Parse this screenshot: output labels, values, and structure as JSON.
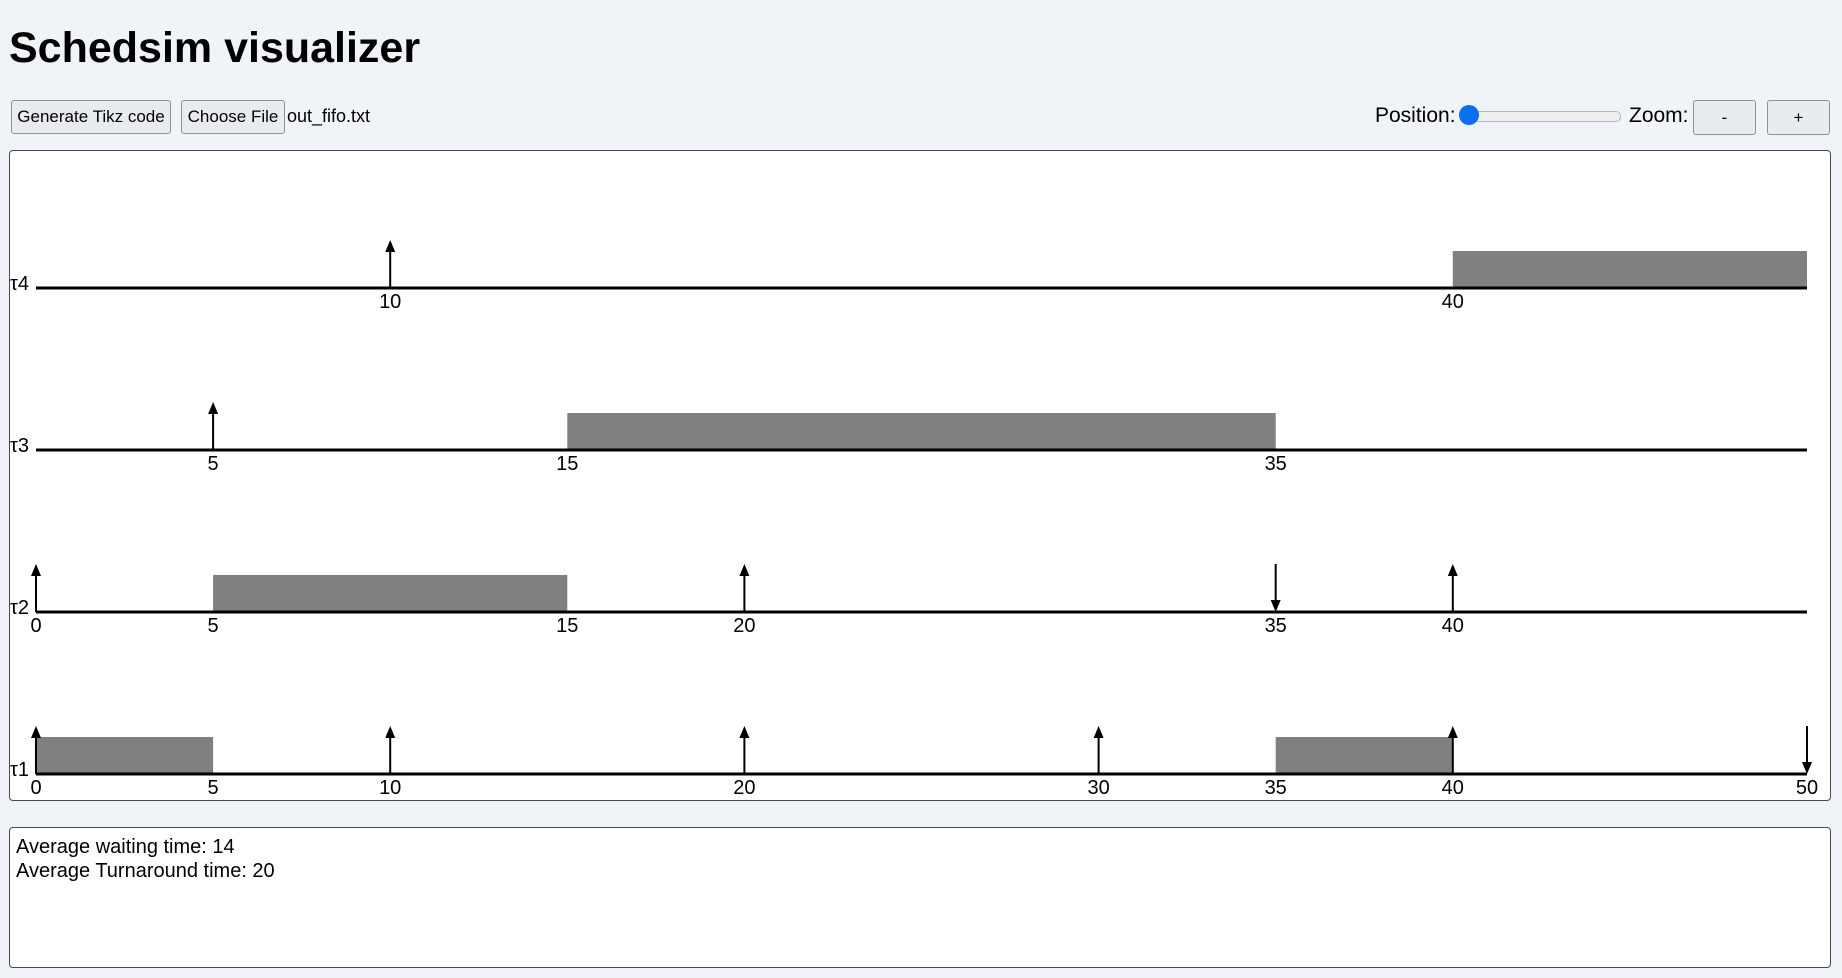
{
  "app": {
    "title": "Schedsim visualizer"
  },
  "toolbar": {
    "tikz_label": "Generate Tikz code",
    "choose_file_label": "Choose File",
    "file_name": "out_fifo.txt",
    "position_label": "Position:",
    "position_value": 0,
    "zoom_label": "Zoom:",
    "zoom_out_label": "-",
    "zoom_in_label": "+"
  },
  "chart_data": {
    "type": "gantt",
    "x_range": [
      0,
      50
    ],
    "tasks": [
      {
        "name": "τ4",
        "executions": [
          [
            40,
            50
          ]
        ],
        "arrivals": [
          10
        ],
        "deadlines": [],
        "tick_labels": [
          10,
          40
        ]
      },
      {
        "name": "τ3",
        "executions": [
          [
            15,
            35
          ]
        ],
        "arrivals": [
          5
        ],
        "deadlines": [],
        "tick_labels": [
          5,
          15,
          35
        ]
      },
      {
        "name": "τ2",
        "executions": [
          [
            5,
            15
          ]
        ],
        "arrivals": [
          0,
          20,
          40
        ],
        "deadlines": [
          35
        ],
        "tick_labels": [
          0,
          5,
          15,
          20,
          35,
          40
        ]
      },
      {
        "name": "τ1",
        "executions": [
          [
            0,
            5
          ],
          [
            35,
            40
          ]
        ],
        "arrivals": [
          0,
          10,
          20,
          30,
          40
        ],
        "deadlines": [
          50
        ],
        "tick_labels": [
          0,
          5,
          10,
          20,
          30,
          35,
          40,
          50
        ]
      }
    ]
  },
  "stats": {
    "avg_waiting": "Average waiting time: 14",
    "avg_turnaround": "Average Turnaround time: 20"
  },
  "colors": {
    "execution": "#808080",
    "accent": "#0b6ff2",
    "background": "#f0f4f8"
  }
}
